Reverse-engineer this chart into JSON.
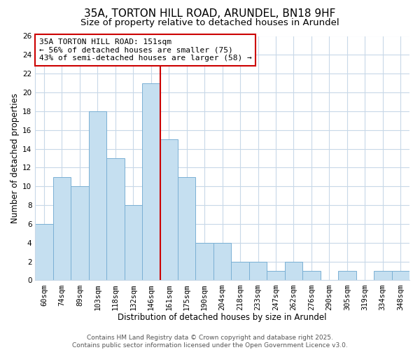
{
  "title": "35A, TORTON HILL ROAD, ARUNDEL, BN18 9HF",
  "subtitle": "Size of property relative to detached houses in Arundel",
  "xlabel": "Distribution of detached houses by size in Arundel",
  "ylabel": "Number of detached properties",
  "bar_labels": [
    "60sqm",
    "74sqm",
    "89sqm",
    "103sqm",
    "118sqm",
    "132sqm",
    "146sqm",
    "161sqm",
    "175sqm",
    "190sqm",
    "204sqm",
    "218sqm",
    "233sqm",
    "247sqm",
    "262sqm",
    "276sqm",
    "290sqm",
    "305sqm",
    "319sqm",
    "334sqm",
    "348sqm"
  ],
  "bar_values": [
    6,
    11,
    10,
    18,
    13,
    8,
    21,
    15,
    11,
    4,
    4,
    2,
    2,
    1,
    2,
    1,
    0,
    1,
    0,
    1,
    1
  ],
  "bar_color": "#c5dff0",
  "bar_edge_color": "#7ab0d4",
  "vline_index": 6,
  "vline_color": "#cc0000",
  "ylim": [
    0,
    26
  ],
  "yticks": [
    0,
    2,
    4,
    6,
    8,
    10,
    12,
    14,
    16,
    18,
    20,
    22,
    24,
    26
  ],
  "annotation_title": "35A TORTON HILL ROAD: 151sqm",
  "annotation_line1": "← 56% of detached houses are smaller (75)",
  "annotation_line2": "43% of semi-detached houses are larger (58) →",
  "footer1": "Contains HM Land Registry data © Crown copyright and database right 2025.",
  "footer2": "Contains public sector information licensed under the Open Government Licence v3.0.",
  "background_color": "#ffffff",
  "grid_color": "#c8d8e8",
  "title_fontsize": 11,
  "subtitle_fontsize": 9.5,
  "axis_label_fontsize": 8.5,
  "tick_fontsize": 7.5,
  "footer_fontsize": 6.5,
  "annotation_fontsize": 8
}
